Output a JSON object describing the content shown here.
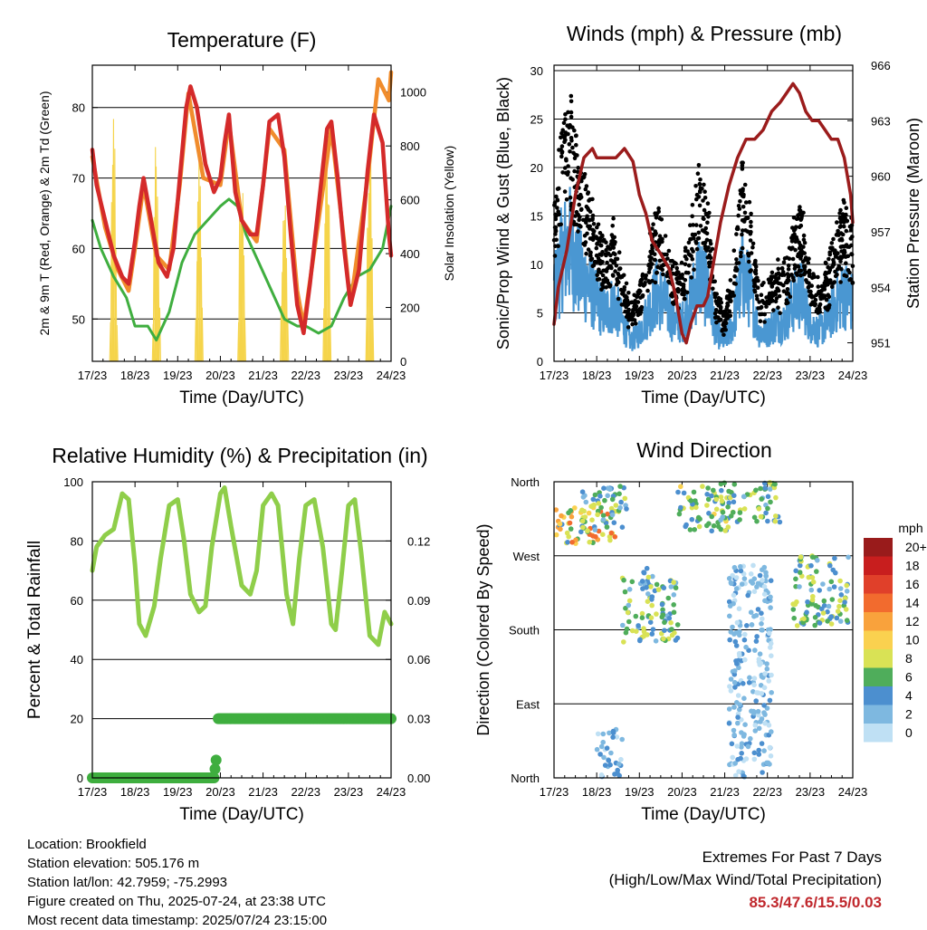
{
  "colors": {
    "temp_red": "#d42a2a",
    "temp_orange": "#f08c2c",
    "dew_green": "#3fae3f",
    "solar_yellow": "#f5d44b",
    "wind_blue": "#4a97d2",
    "gust_black": "#000000",
    "pressure_maroon": "#9b1c1c",
    "rh_green": "#8fce4a",
    "precip_green": "#3fae3f",
    "extremes_red": "#c0282d"
  },
  "chart_data": [
    {
      "type": "line",
      "title": "Temperature (F)",
      "xlabel": "Time (Day/UTC)",
      "ylabel": "2m & 9m T (Red, Orange) & 2m Td (Green)",
      "y2label": "Solar Insolation (Yellow)",
      "x_ticks": [
        "17/23",
        "18/23",
        "19/23",
        "20/23",
        "21/23",
        "22/23",
        "23/23",
        "24/23"
      ],
      "y_ticks": [
        50,
        60,
        70,
        80
      ],
      "y2_ticks": [
        0,
        200,
        400,
        600,
        800,
        1000
      ],
      "ylim": [
        44,
        86
      ],
      "y2lim": [
        0,
        1100
      ],
      "series": [
        {
          "name": "2m T",
          "color_key": "temp_red",
          "x": [
            0,
            0.1,
            0.3,
            0.5,
            0.7,
            0.85,
            1.0,
            1.1,
            1.2,
            1.35,
            1.55,
            1.75,
            1.9,
            2.05,
            2.2,
            2.3,
            2.45,
            2.65,
            2.85,
            3.0,
            3.1,
            3.2,
            3.35,
            3.5,
            3.7,
            3.85,
            4.0,
            4.15,
            4.35,
            4.5,
            4.65,
            4.8,
            4.95,
            5.1,
            5.3,
            5.5,
            5.6,
            5.75,
            5.9,
            6.05,
            6.25,
            6.45,
            6.6,
            6.8,
            6.95,
            7.0
          ],
          "y": [
            74,
            69,
            64,
            59,
            56,
            55,
            61,
            66,
            70,
            65,
            58,
            56,
            60,
            70,
            80,
            83,
            80,
            72,
            68,
            70,
            75,
            79,
            68,
            64,
            62,
            62,
            69,
            78,
            79,
            73,
            62,
            52,
            48,
            55,
            66,
            77,
            78,
            70,
            60,
            52,
            57,
            71,
            79,
            75,
            62,
            59
          ]
        },
        {
          "name": "9m T",
          "color_key": "temp_orange",
          "x": [
            0,
            0.3,
            0.6,
            0.85,
            1.0,
            1.2,
            1.5,
            1.8,
            2.05,
            2.25,
            2.6,
            3.0,
            3.2,
            3.5,
            3.85,
            4.15,
            4.5,
            4.8,
            4.95,
            5.3,
            5.6,
            5.9,
            6.05,
            6.45,
            6.7,
            6.95,
            7.0
          ],
          "y": [
            73,
            63,
            57,
            54,
            60,
            69,
            59,
            57,
            69,
            82,
            70,
            69,
            78,
            64,
            61,
            77,
            74,
            54,
            49,
            64,
            77,
            61,
            52,
            70,
            84,
            81,
            85
          ]
        },
        {
          "name": "2m Td",
          "color_key": "dew_green",
          "x": [
            0,
            0.2,
            0.5,
            0.8,
            1.0,
            1.3,
            1.5,
            1.8,
            2.1,
            2.4,
            2.7,
            3.0,
            3.2,
            3.4,
            3.6,
            3.9,
            4.2,
            4.5,
            4.8,
            5.0,
            5.3,
            5.6,
            5.9,
            6.2,
            6.5,
            6.8,
            7.0
          ],
          "y": [
            64,
            60,
            56,
            53,
            49,
            49,
            47,
            51,
            58,
            62,
            64,
            66,
            67,
            66,
            62,
            58,
            54,
            50,
            49,
            49,
            48,
            49,
            53,
            56,
            57,
            60,
            66
          ]
        },
        {
          "name": "Solar Insolation",
          "color_key": "solar_yellow",
          "axis": "y2",
          "daily_peak": 950
        }
      ]
    },
    {
      "type": "scatter",
      "title": "Winds (mph) & Pressure (mb)",
      "xlabel": "Time (Day/UTC)",
      "ylabel": "Sonic/Prop Wind & Gust (Blue, Black)",
      "y2label": "Station Pressure (Maroon)",
      "x_ticks": [
        "17/23",
        "18/23",
        "19/23",
        "20/23",
        "21/23",
        "22/23",
        "23/23",
        "24/23"
      ],
      "y_ticks": [
        0,
        5,
        10,
        15,
        20,
        25,
        30
      ],
      "y2_ticks": [
        951,
        954,
        957,
        960,
        963,
        966
      ],
      "ylim": [
        0,
        30
      ],
      "y2lim": [
        950,
        966
      ],
      "series": [
        {
          "name": "Station Pressure",
          "color_key": "pressure_maroon",
          "axis": "y2",
          "x": [
            0,
            0.1,
            0.3,
            0.5,
            0.7,
            0.9,
            1.0,
            1.1,
            1.25,
            1.45,
            1.65,
            1.85,
            2.0,
            2.15,
            2.3,
            2.5,
            2.7,
            2.85,
            3.0,
            3.1,
            3.2,
            3.35,
            3.5,
            3.6,
            3.75,
            3.9,
            4.1,
            4.3,
            4.5,
            4.7,
            4.9,
            5.1,
            5.3,
            5.45,
            5.6,
            5.75,
            5.9,
            6.05,
            6.2,
            6.35,
            6.5,
            6.65,
            6.8,
            6.95,
            7.0
          ],
          "y": [
            952,
            954,
            956,
            959,
            961,
            961.5,
            961,
            961,
            961,
            961,
            961.5,
            960.8,
            959,
            958,
            956.5,
            955.8,
            955,
            953.5,
            951.5,
            951,
            952,
            953,
            953,
            953.5,
            955.5,
            957.5,
            959.5,
            961,
            962,
            962,
            962.5,
            963.5,
            964,
            964.5,
            965,
            964.5,
            963.5,
            963,
            963,
            962.5,
            962,
            962,
            961,
            959,
            957.5
          ]
        },
        {
          "name": "Wind",
          "color_key": "wind_blue"
        },
        {
          "name": "Gust",
          "color_key": "gust_black"
        }
      ],
      "wind_profile": {
        "x": [
          0,
          0.2,
          0.4,
          0.6,
          0.8,
          1.0,
          1.2,
          1.4,
          1.6,
          1.8,
          2.0,
          2.2,
          2.4,
          2.6,
          2.8,
          3.0,
          3.2,
          3.4,
          3.6,
          3.8,
          4.0,
          4.2,
          4.4,
          4.6,
          4.8,
          5.0,
          5.2,
          5.4,
          5.6,
          5.8,
          6.0,
          6.2,
          6.4,
          6.6,
          6.8,
          7.0
        ],
        "y": [
          7,
          11,
          12,
          9,
          8,
          6,
          5,
          6,
          4,
          2,
          3,
          5,
          7,
          6,
          4,
          4,
          6,
          9,
          7,
          3,
          2,
          4,
          9,
          7,
          3,
          3,
          4,
          4,
          6,
          7,
          4,
          3,
          4,
          6,
          7,
          6
        ]
      }
    },
    {
      "type": "line",
      "title": "Relative Humidity (%) & Precipitation (in)",
      "xlabel": "Time (Day/UTC)",
      "ylabel": "Percent & Total Rainfall",
      "x_ticks": [
        "17/23",
        "18/23",
        "19/23",
        "20/23",
        "21/23",
        "22/23",
        "23/23",
        "24/23"
      ],
      "y_ticks": [
        0,
        20,
        40,
        60,
        80,
        100
      ],
      "y2_ticks": [
        "0.00",
        "0.03",
        "0.06",
        "0.09",
        "0.12"
      ],
      "ylim": [
        0,
        100
      ],
      "y2lim": [
        0,
        0.15
      ],
      "series": [
        {
          "name": "Relative Humidity",
          "color_key": "rh_green",
          "x": [
            0,
            0.1,
            0.3,
            0.5,
            0.7,
            0.85,
            1.0,
            1.1,
            1.25,
            1.45,
            1.6,
            1.8,
            2.0,
            2.15,
            2.3,
            2.5,
            2.65,
            2.8,
            3.0,
            3.1,
            3.25,
            3.5,
            3.7,
            3.85,
            4.0,
            4.2,
            4.35,
            4.55,
            4.7,
            4.85,
            5.0,
            5.2,
            5.4,
            5.6,
            5.7,
            5.85,
            6.0,
            6.15,
            6.3,
            6.5,
            6.7,
            6.85,
            7.0
          ],
          "y": [
            70,
            78,
            82,
            84,
            96,
            94,
            72,
            52,
            48,
            58,
            74,
            92,
            94,
            80,
            62,
            56,
            58,
            78,
            96,
            98,
            85,
            65,
            62,
            70,
            92,
            96,
            92,
            62,
            52,
            74,
            92,
            94,
            78,
            52,
            50,
            70,
            92,
            94,
            76,
            48,
            45,
            56,
            52
          ]
        },
        {
          "name": "Precipitation",
          "color_key": "precip_green",
          "axis": "y2",
          "x": [
            0,
            2.85,
            2.9,
            2.95,
            7.0
          ],
          "y": [
            0,
            0,
            0.009,
            0.03,
            0.03
          ]
        }
      ]
    },
    {
      "type": "scatter",
      "title": "Wind Direction",
      "xlabel": "Time (Day/UTC)",
      "ylabel": "Direction (Colored By Speed)",
      "x_ticks": [
        "17/23",
        "18/23",
        "19/23",
        "20/23",
        "21/23",
        "22/23",
        "23/23",
        "24/23"
      ],
      "y_ticks": [
        "North",
        "East",
        "South",
        "West",
        "North"
      ],
      "ylim": [
        0,
        360
      ],
      "legend": {
        "title": "mph",
        "labels": [
          "20+",
          "18",
          "16",
          "14",
          "12",
          "10",
          "8",
          "6",
          "4",
          "2",
          "0"
        ],
        "colors": [
          "#991b1b",
          "#c81e1e",
          "#e0402a",
          "#f26b2e",
          "#f9a23c",
          "#fad14f",
          "#d9e255",
          "#4fad5b",
          "#4c8fcf",
          "#7eb8e0",
          "#bfe0f4"
        ]
      },
      "clusters": [
        {
          "x": [
            0,
            1.5
          ],
          "dir": [
            285,
            330
          ],
          "speed": [
            4,
            15
          ]
        },
        {
          "x": [
            0.6,
            1.7
          ],
          "dir": [
            300,
            355
          ],
          "speed": [
            2,
            9
          ]
        },
        {
          "x": [
            1.6,
            2.9
          ],
          "dir": [
            165,
            245
          ],
          "speed": [
            2,
            9
          ]
        },
        {
          "x": [
            2.9,
            4.1
          ],
          "dir": [
            300,
            355
          ],
          "speed": [
            3,
            10
          ]
        },
        {
          "x": [
            3.9,
            5.3
          ],
          "dir": [
            310,
            360
          ],
          "speed": [
            2,
            9
          ]
        },
        {
          "x": [
            5.6,
            6.9
          ],
          "dir": [
            185,
            270
          ],
          "speed": [
            2,
            9
          ]
        },
        {
          "x": [
            4.1,
            5.1
          ],
          "dir": [
            0,
            260
          ],
          "speed": [
            0,
            4
          ]
        },
        {
          "x": [
            1.0,
            1.6
          ],
          "dir": [
            0,
            60
          ],
          "speed": [
            0,
            5
          ]
        },
        {
          "x": [
            2.0,
            2.2
          ],
          "dir": [
            220,
            260
          ],
          "speed": [
            2,
            5
          ]
        }
      ]
    }
  ],
  "info": {
    "location": "Location: Brookfield",
    "elevation": "Station elevation: 505.176 m",
    "latlon": "Station lat/lon: 42.7959; -75.2993",
    "created": "Figure created on Thu, 2025-07-24, at 23:38 UTC",
    "recent": "Most recent data timestamp: 2025/07/24 23:15:00"
  },
  "extremes": {
    "title": "Extremes For Past 7 Days",
    "subtitle": "(High/Low/Max Wind/Total Precipitation)",
    "values": "85.3/47.6/15.5/0.03"
  }
}
